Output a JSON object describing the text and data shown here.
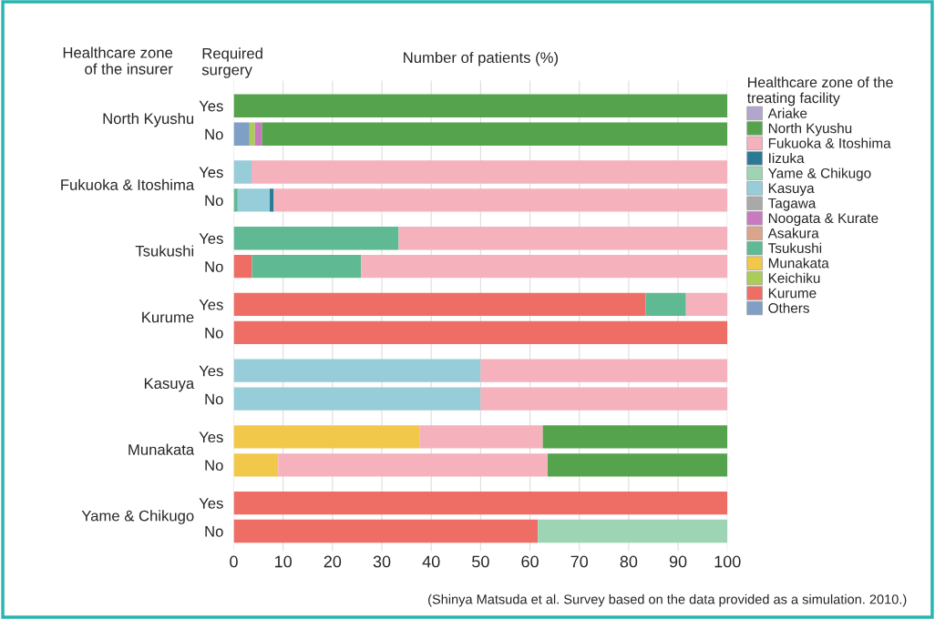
{
  "chart_data": {
    "type": "bar",
    "orientation": "horizontal",
    "stacked": true,
    "xlabel": "Number of patients (%)",
    "ylabel": "Required\nsurgery",
    "legend_title": "Healthcare zone of the\ntreating facility",
    "annotations": [
      "Healthcare zone\nof the insurer",
      "North Kyushu",
      "Fukuoka & Itoshima",
      "Tsukushi",
      "Kurume",
      "Kasuya",
      "Munakata",
      "Yame & Chikugo",
      "(Shinya Matsuda et al. Survey based on the data provided as a simulation. 2010.)"
    ],
    "categories": [
      "Yes",
      "No",
      "Yes",
      "No",
      "Yes",
      "No",
      "Yes",
      "No",
      "Yes",
      "No",
      "Yes",
      "No",
      "Yes",
      "No"
    ],
    "xlim": [
      0,
      100
    ],
    "xticks": [
      0,
      10,
      20,
      30,
      40,
      50,
      60,
      70,
      80,
      90,
      100
    ],
    "grid": "x",
    "legend": "right",
    "series": [
      {
        "name": "Others",
        "color": "#7f9fc4",
        "values": [
          0,
          3.2,
          0,
          0,
          0,
          0,
          0,
          0,
          0,
          0,
          0,
          0,
          0,
          0
        ]
      },
      {
        "name": "Kurume",
        "color": "#ee6e65",
        "values": [
          0,
          0,
          0,
          0,
          0,
          3.7,
          83.4,
          100,
          0,
          0,
          0,
          0,
          100,
          61.6
        ]
      },
      {
        "name": "Keichiku",
        "color": "#a9cc5a",
        "values": [
          0,
          1.1,
          0,
          0,
          0,
          0,
          0,
          0,
          0,
          0,
          0,
          0,
          0,
          0
        ]
      },
      {
        "name": "Munakata",
        "color": "#f1c84a",
        "values": [
          0,
          0,
          0,
          0,
          0,
          0,
          0,
          0,
          0,
          0,
          37.6,
          9.0,
          0,
          0
        ]
      },
      {
        "name": "Tsukushi",
        "color": "#5fba94",
        "values": [
          0,
          0,
          0,
          0.8,
          33.4,
          22.1,
          8.2,
          0,
          0,
          0,
          0,
          0,
          0,
          0
        ]
      },
      {
        "name": "Asakura",
        "color": "#dba58b",
        "values": [
          0,
          0,
          0,
          0,
          0,
          0,
          0,
          0,
          0,
          0,
          0,
          0,
          0,
          0
        ]
      },
      {
        "name": "Noogata & Kurate",
        "color": "#c77ac0",
        "values": [
          0,
          1.4,
          0,
          0,
          0,
          0,
          0,
          0,
          0,
          0,
          0,
          0,
          0,
          0
        ]
      },
      {
        "name": "Tagawa",
        "color": "#a9a9a9",
        "values": [
          0,
          0,
          0,
          0,
          0,
          0,
          0,
          0,
          0,
          0,
          0,
          0,
          0,
          0
        ]
      },
      {
        "name": "Kasuya",
        "color": "#96cdd9",
        "values": [
          0,
          0,
          3.6,
          6.5,
          0,
          0,
          0,
          0,
          50,
          50,
          0,
          0,
          0,
          0
        ]
      },
      {
        "name": "Yame & Chikugo",
        "color": "#9dd5b4",
        "values": [
          0,
          0,
          0,
          0,
          0,
          0,
          0,
          0,
          0,
          0,
          0,
          0,
          0,
          38.4
        ]
      },
      {
        "name": "Iizuka",
        "color": "#2a7a96",
        "values": [
          0,
          0,
          0,
          0.8,
          0,
          0,
          0,
          0,
          0,
          0,
          0,
          0,
          0,
          0
        ]
      },
      {
        "name": "Fukuoka & Itoshima",
        "color": "#f5b1bc",
        "values": [
          0,
          0,
          96.4,
          91.9,
          66.6,
          74.2,
          8.4,
          0,
          50,
          50,
          25.0,
          54.6,
          0,
          0
        ]
      },
      {
        "name": "North Kyushu",
        "color": "#55a34c",
        "values": [
          100,
          94.3,
          0,
          0,
          0,
          0,
          0,
          0,
          0,
          0,
          37.4,
          36.4,
          0,
          0
        ]
      },
      {
        "name": "Ariake",
        "color": "#b3a6cc",
        "values": [
          0,
          0,
          0,
          0,
          0,
          0,
          0,
          0,
          0,
          0,
          0,
          0,
          0,
          0
        ]
      }
    ]
  }
}
